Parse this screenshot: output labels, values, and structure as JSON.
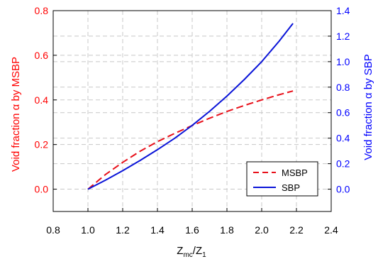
{
  "chart_data": {
    "type": "line",
    "xlabel": "Z",
    "xlabel_sub1": "mc",
    "xlabel_mid": "/Z",
    "xlabel_sub2": "1",
    "ylabel_left": "Void fraction α by MSBP",
    "ylabel_right": "Void fraction α by SBP",
    "xlim": [
      0.8,
      2.4
    ],
    "ylim_left": [
      -0.1,
      0.8
    ],
    "ylim_right": [
      -0.175,
      1.4
    ],
    "x_ticks": [
      "0.8",
      "1.0",
      "1.2",
      "1.4",
      "1.6",
      "1.8",
      "2.0",
      "2.2",
      "2.4"
    ],
    "y_left_ticks": [
      "0.0",
      "0.2",
      "0.4",
      "0.6",
      "0.8"
    ],
    "y_right_ticks": [
      "0.0",
      "0.2",
      "0.4",
      "0.6",
      "0.8",
      "1.0",
      "1.2",
      "1.4"
    ],
    "grid": true,
    "legend_position": "bottom-right",
    "colors": {
      "left_axis": "#ff0000",
      "right_axis": "#0000ff",
      "grid": "#c8c8c8"
    },
    "series": [
      {
        "name": "MSBP",
        "axis": "left",
        "style": "dashed",
        "color": "#e8101a",
        "x": [
          1.0,
          1.1,
          1.2,
          1.3,
          1.4,
          1.5,
          1.6,
          1.7,
          1.8,
          1.9,
          2.0,
          2.1,
          2.18
        ],
        "y": [
          0.0,
          0.065,
          0.12,
          0.17,
          0.213,
          0.25,
          0.285,
          0.318,
          0.348,
          0.375,
          0.4,
          0.423,
          0.44
        ]
      },
      {
        "name": "SBP",
        "axis": "right",
        "style": "solid",
        "color": "#0a14d8",
        "x": [
          1.0,
          1.1,
          1.2,
          1.3,
          1.4,
          1.5,
          1.6,
          1.7,
          1.8,
          1.9,
          2.0,
          2.1,
          2.18
        ],
        "y": [
          0.0,
          0.07,
          0.145,
          0.225,
          0.31,
          0.4,
          0.5,
          0.61,
          0.73,
          0.86,
          1.0,
          1.16,
          1.3
        ]
      }
    ]
  }
}
